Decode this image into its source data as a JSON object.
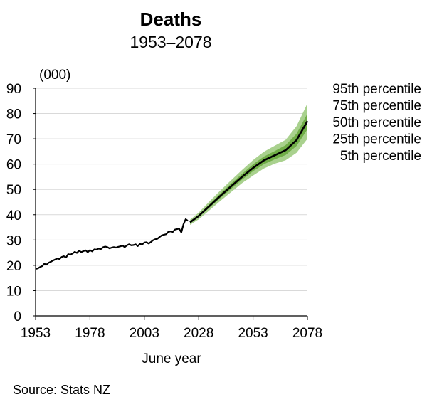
{
  "chart_data": {
    "type": "line",
    "title": "Deaths",
    "subtitle": "1953–2078",
    "xlabel": "June year",
    "ylabel": "(000)",
    "xlim": [
      1953,
      2078
    ],
    "ylim": [
      0,
      90
    ],
    "x_ticks": [
      1953,
      1978,
      2003,
      2028,
      2053,
      2078
    ],
    "y_ticks": [
      0,
      10,
      20,
      30,
      40,
      50,
      60,
      70,
      80,
      90
    ],
    "grid": true,
    "legend": [
      "95th percentile",
      "75th percentile",
      "50th percentile",
      "25th percentile",
      "5th percentile"
    ],
    "legend_position": "right",
    "colors": {
      "line": "#000000",
      "band_outer": "#a9d18e",
      "band_inner": "#70ad47",
      "grid": "#d9d9d9"
    },
    "historical": {
      "x": [
        1953,
        1954,
        1955,
        1956,
        1957,
        1958,
        1959,
        1960,
        1961,
        1962,
        1963,
        1964,
        1965,
        1966,
        1967,
        1968,
        1969,
        1970,
        1971,
        1972,
        1973,
        1974,
        1975,
        1976,
        1977,
        1978,
        1979,
        1980,
        1981,
        1982,
        1983,
        1984,
        1985,
        1986,
        1987,
        1988,
        1989,
        1990,
        1991,
        1992,
        1993,
        1994,
        1995,
        1996,
        1997,
        1998,
        1999,
        2000,
        2001,
        2002,
        2003,
        2004,
        2005,
        2006,
        2007,
        2008,
        2009,
        2010,
        2011,
        2012,
        2013,
        2014,
        2015,
        2016,
        2017,
        2018,
        2019,
        2020,
        2021,
        2022,
        2023
      ],
      "y": [
        18.6,
        18.8,
        19.3,
        19.7,
        20.6,
        20.3,
        21.0,
        21.4,
        21.9,
        22.3,
        22.7,
        22.5,
        23.3,
        23.6,
        23.1,
        24.4,
        24.2,
        24.7,
        25.3,
        24.9,
        25.8,
        25.2,
        25.6,
        25.9,
        25.2,
        26.0,
        25.5,
        26.3,
        26.2,
        26.6,
        26.4,
        27.1,
        27.4,
        27.2,
        26.7,
        27.0,
        27.2,
        27.0,
        27.3,
        27.5,
        27.8,
        27.2,
        27.9,
        28.3,
        27.9,
        28.0,
        28.3,
        27.6,
        28.5,
        28.2,
        29.0,
        29.1,
        28.6,
        29.2,
        29.9,
        30.3,
        30.5,
        31.2,
        31.8,
        32.1,
        32.3,
        33.2,
        33.4,
        33.1,
        34.1,
        34.3,
        34.5,
        33.0,
        36.2,
        38.2,
        37.6
      ]
    },
    "projection": {
      "x": [
        2024,
        2028,
        2033,
        2038,
        2043,
        2048,
        2053,
        2058,
        2063,
        2068,
        2073,
        2078
      ],
      "p5": [
        36.0,
        38.2,
        41.8,
        45.5,
        49.0,
        52.5,
        55.5,
        58.3,
        60.2,
        61.5,
        64.5,
        70.0
      ],
      "p25": [
        36.5,
        39.0,
        42.8,
        46.6,
        50.3,
        53.9,
        57.2,
        60.0,
        61.9,
        63.6,
        67.2,
        73.8
      ],
      "p50": [
        37.0,
        39.5,
        43.5,
        47.5,
        51.3,
        55.0,
        58.5,
        61.5,
        63.5,
        65.5,
        69.5,
        77.0
      ],
      "p75": [
        37.4,
        40.0,
        44.2,
        48.4,
        52.4,
        56.2,
        59.9,
        63.0,
        65.2,
        67.5,
        72.0,
        80.0
      ],
      "p95": [
        38.0,
        40.8,
        45.3,
        49.6,
        53.7,
        57.7,
        61.6,
        64.9,
        67.3,
        69.6,
        75.0,
        84.0
      ]
    }
  },
  "source": "Source: Stats NZ"
}
